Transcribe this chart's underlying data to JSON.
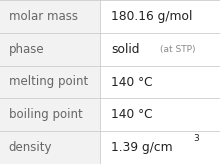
{
  "rows": [
    {
      "label": "molar mass",
      "value": "180.16 g/mol",
      "value2": null,
      "sup": null
    },
    {
      "label": "phase",
      "value": "solid",
      "value2": "(at STP)",
      "sup": null
    },
    {
      "label": "melting point",
      "value": "140 °C",
      "value2": null,
      "sup": null
    },
    {
      "label": "boiling point",
      "value": "140 °C",
      "value2": null,
      "sup": null
    },
    {
      "label": "density",
      "value": "1.39 g/cm",
      "value2": null,
      "sup": "3"
    }
  ],
  "col_split": 0.455,
  "background": "#ffffff",
  "left_bg": "#f2f2f2",
  "line_color": "#cccccc",
  "label_fontsize": 8.5,
  "value_fontsize": 8.8,
  "small_fontsize": 6.5,
  "label_color": "#666666",
  "value_color": "#222222",
  "stp_color": "#888888"
}
